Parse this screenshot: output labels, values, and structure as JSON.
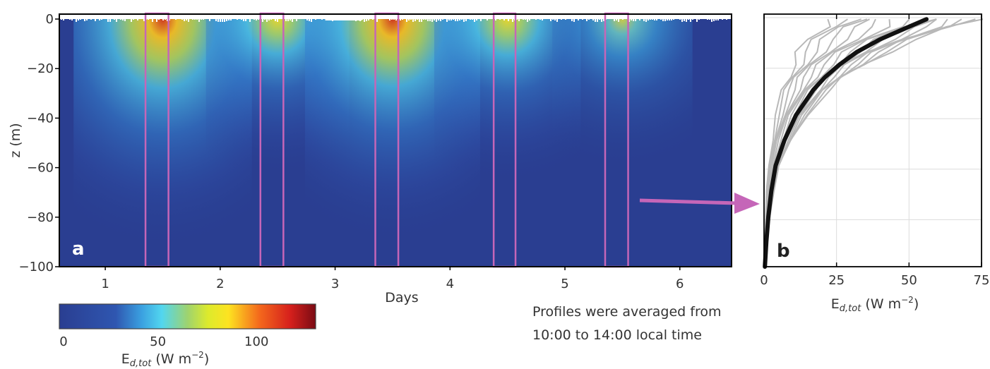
{
  "chart_data": [
    {
      "id": "a",
      "type": "heatmap",
      "panel_label": "a",
      "xlabel": "Days",
      "ylabel": "z (m)",
      "xlim": [
        0.6,
        6.45
      ],
      "ylim": [
        -100,
        0
      ],
      "x_ticks": [
        1,
        2,
        3,
        4,
        5,
        6
      ],
      "y_ticks": [
        0,
        -20,
        -40,
        -60,
        -80,
        -100
      ],
      "y_tick_labels": [
        "0",
        "−20",
        "−40",
        "−60",
        "−80",
        "−100"
      ],
      "value_label_base": "E",
      "value_label_sub": "d,tot",
      "value_label_unit": " (W m",
      "value_label_exp": "−2",
      "value_label_close": ")",
      "colorbar_ticks": [
        0,
        50,
        100
      ],
      "colorbar_range": [
        0,
        130
      ],
      "daily_peaks": [
        {
          "day": 1.5,
          "surface_max": 125
        },
        {
          "day": 2.5,
          "surface_max": 70
        },
        {
          "day": 3.5,
          "surface_max": 120
        },
        {
          "day": 4.5,
          "surface_max": 75
        },
        {
          "day": 5.5,
          "surface_max": 65
        }
      ],
      "averaging_windows": [
        [
          1.35,
          1.55
        ],
        [
          2.35,
          2.55
        ],
        [
          3.35,
          3.55
        ],
        [
          4.38,
          4.57
        ],
        [
          5.35,
          5.55
        ]
      ],
      "window_color": "#c566b8"
    },
    {
      "id": "b",
      "type": "line",
      "panel_label": "b",
      "xlabel_base": "E",
      "xlabel_sub": "d,tot",
      "xlabel_unit": " (W m",
      "xlabel_exp": "−2",
      "xlabel_close": ")",
      "xlim": [
        0,
        75
      ],
      "ylim": [
        -100,
        0
      ],
      "x_ticks": [
        0,
        25,
        50,
        75
      ],
      "grid": true,
      "mean_profile": {
        "color": "#111111",
        "z": [
          -2,
          -5,
          -10,
          -15,
          -20,
          -25,
          -30,
          -40,
          -50,
          -60,
          -70,
          -80,
          -90,
          -100
        ],
        "e": [
          56,
          50,
          40,
          32,
          26,
          21,
          17,
          11,
          7,
          4,
          2.5,
          1.5,
          0.8,
          0.3
        ]
      },
      "individual_profiles": {
        "color": "#b8b8b8",
        "surface_values": [
          22,
          26,
          30,
          34,
          38,
          42,
          46,
          50,
          53,
          56,
          58,
          61,
          63,
          66,
          68,
          70,
          72,
          74
        ],
        "z": [
          -2,
          -5,
          -10,
          -15,
          -20,
          -25,
          -30,
          -40,
          -50,
          -60,
          -70,
          -80,
          -90,
          -100
        ]
      }
    }
  ],
  "arrow": {
    "color": "#c566b8"
  },
  "note": {
    "line1": "Profiles were averaged from",
    "line2": "10:00 to 14:00 local time"
  }
}
